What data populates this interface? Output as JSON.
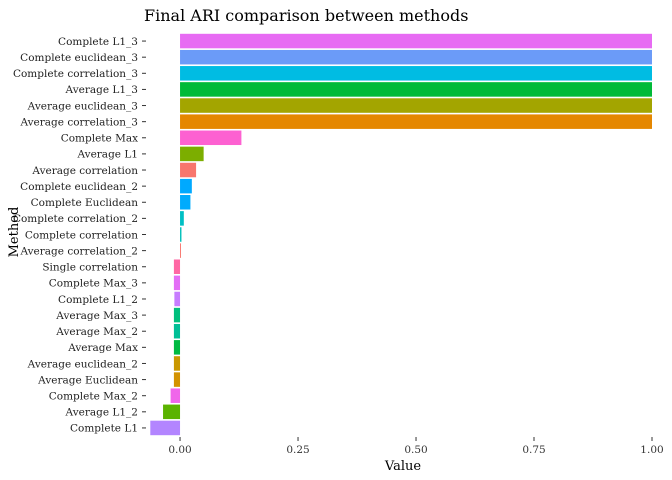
{
  "chart_data": {
    "type": "bar",
    "orientation": "horizontal",
    "title": "Final ARI comparison between methods",
    "xlabel": "Value",
    "ylabel": "Method",
    "xlim": [
      -0.07,
      1.0
    ],
    "xticks": [
      0.0,
      0.25,
      0.5,
      0.75,
      1.0
    ],
    "xtick_labels": [
      "0.00",
      "0.25",
      "0.50",
      "0.75",
      "1.00"
    ],
    "grid": false,
    "legend": "none",
    "categories": [
      "Complete L1_3",
      "Complete euclidean_3",
      "Complete correlation_3",
      "Average L1_3",
      "Average euclidean_3",
      "Average correlation_3",
      "Complete Max",
      "Average L1",
      "Average correlation",
      "Complete euclidean_2",
      "Complete Euclidean",
      "Complete correlation_2",
      "Complete correlation",
      "Average correlation_2",
      "Single correlation",
      "Complete Max_3",
      "Complete L1_2",
      "Average Max_3",
      "Average Max_2",
      "Average Max",
      "Average euclidean_2",
      "Average Euclidean",
      "Complete Max_2",
      "Average L1_2",
      "Complete L1"
    ],
    "values": [
      1.0,
      1.0,
      1.0,
      1.0,
      1.0,
      1.0,
      0.13,
      0.05,
      0.034,
      0.025,
      0.022,
      0.008,
      0.003,
      0.002,
      -0.013,
      -0.013,
      -0.012,
      -0.013,
      -0.013,
      -0.013,
      -0.013,
      -0.013,
      -0.02,
      -0.036,
      -0.063
    ],
    "colors": [
      "#E76BF3",
      "#6B9BF8",
      "#00BCE3",
      "#00BA38",
      "#A3A500",
      "#E58700",
      "#FD61D1",
      "#7CAE00",
      "#F8766D",
      "#00A9FF",
      "#00ABFD",
      "#00BFC4",
      "#00C0BA",
      "#F8766D",
      "#FF67A4",
      "#E36EF6",
      "#C77CFF",
      "#00BF7D",
      "#00BF96",
      "#00BA42",
      "#C99800",
      "#D39200",
      "#F066EA",
      "#5BB300",
      "#B385FF"
    ]
  }
}
